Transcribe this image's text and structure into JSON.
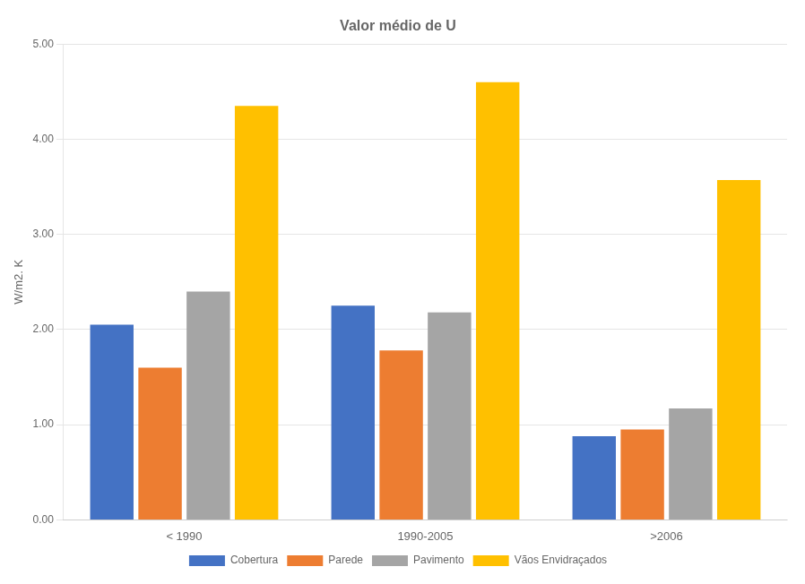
{
  "chart_data": {
    "type": "bar",
    "title": "Valor médio de U",
    "ylabel": "W/m2. K",
    "categories": [
      "< 1990",
      "1990-2005",
      ">2006"
    ],
    "series": [
      {
        "name": "Cobertura",
        "color": "#4472C4",
        "values": [
          2.05,
          2.25,
          0.88
        ]
      },
      {
        "name": "Parede",
        "color": "#ED7D31",
        "values": [
          1.6,
          1.78,
          0.95
        ]
      },
      {
        "name": "Pavimento",
        "color": "#A5A5A5",
        "values": [
          2.4,
          2.18,
          1.17
        ]
      },
      {
        "name": "Vãos Envidraçados",
        "color": "#FFC000",
        "values": [
          4.35,
          4.6,
          3.57
        ]
      }
    ],
    "ylim": [
      0,
      5.0
    ],
    "yticks": [
      {
        "value": 0,
        "label": "0.00"
      },
      {
        "value": 1,
        "label": "1.00"
      },
      {
        "value": 2,
        "label": "2.00"
      },
      {
        "value": 3,
        "label": "3.00"
      },
      {
        "value": 4,
        "label": "4.00"
      },
      {
        "value": 5,
        "label": "5.00"
      }
    ],
    "grid": true,
    "legend": "bottom"
  }
}
